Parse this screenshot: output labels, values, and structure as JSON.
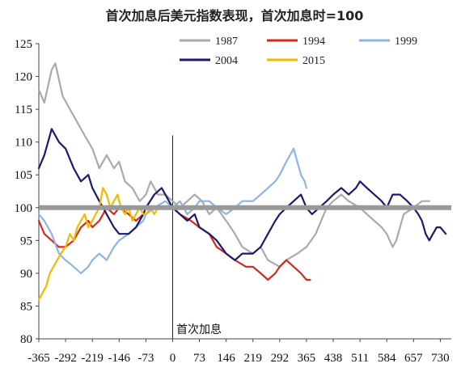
{
  "chart_data": {
    "type": "line",
    "title": "首次加息后美元指数表现，首次加息时=100",
    "xlabel": "",
    "ylabel": "",
    "xlim": [
      -365,
      760
    ],
    "ylim": [
      80,
      125
    ],
    "x_ticks": [
      -365,
      -292,
      -219,
      -146,
      -73,
      0,
      73,
      146,
      219,
      292,
      365,
      438,
      511,
      584,
      657,
      730
    ],
    "y_ticks": [
      80,
      85,
      90,
      95,
      100,
      105,
      110,
      115,
      120,
      125
    ],
    "grid": false,
    "legend_position": "top",
    "reference_line": {
      "y": 100,
      "color": "#999999"
    },
    "annotation": {
      "text": "首次加息",
      "x": 0
    },
    "series": [
      {
        "name": "1987",
        "color": "#aaaaaa",
        "points": [
          [
            -365,
            118
          ],
          [
            -350,
            116
          ],
          [
            -330,
            121
          ],
          [
            -320,
            122
          ],
          [
            -300,
            117
          ],
          [
            -280,
            115
          ],
          [
            -260,
            113
          ],
          [
            -240,
            111
          ],
          [
            -219,
            109
          ],
          [
            -200,
            106
          ],
          [
            -180,
            108
          ],
          [
            -160,
            106
          ],
          [
            -146,
            107
          ],
          [
            -130,
            104
          ],
          [
            -110,
            103
          ],
          [
            -90,
            101
          ],
          [
            -73,
            102
          ],
          [
            -60,
            104
          ],
          [
            -40,
            102
          ],
          [
            -20,
            102
          ],
          [
            0,
            101
          ],
          [
            20,
            100
          ],
          [
            40,
            101
          ],
          [
            60,
            102
          ],
          [
            80,
            101
          ],
          [
            100,
            99
          ],
          [
            120,
            100
          ],
          [
            146,
            98
          ],
          [
            170,
            96
          ],
          [
            190,
            94
          ],
          [
            219,
            93
          ],
          [
            240,
            94
          ],
          [
            260,
            92
          ],
          [
            292,
            91
          ],
          [
            310,
            92
          ],
          [
            340,
            93
          ],
          [
            365,
            94
          ],
          [
            390,
            96
          ],
          [
            420,
            100
          ],
          [
            438,
            101
          ],
          [
            460,
            102
          ],
          [
            480,
            101
          ],
          [
            511,
            100
          ],
          [
            530,
            99
          ],
          [
            550,
            98
          ],
          [
            570,
            97
          ],
          [
            584,
            96
          ],
          [
            600,
            94
          ],
          [
            610,
            95
          ],
          [
            630,
            99
          ],
          [
            657,
            100
          ],
          [
            680,
            101
          ],
          [
            700,
            101
          ]
        ]
      },
      {
        "name": "1994",
        "color": "#d42a1e",
        "points": [
          [
            -365,
            98
          ],
          [
            -350,
            96
          ],
          [
            -330,
            95
          ],
          [
            -310,
            94
          ],
          [
            -292,
            94
          ],
          [
            -270,
            95
          ],
          [
            -250,
            97
          ],
          [
            -230,
            98
          ],
          [
            -219,
            97
          ],
          [
            -200,
            98
          ],
          [
            -180,
            100
          ],
          [
            -160,
            99
          ],
          [
            -146,
            100
          ],
          [
            -120,
            99
          ],
          [
            -100,
            98
          ],
          [
            -80,
            99
          ],
          [
            -73,
            99
          ],
          [
            -50,
            100
          ],
          [
            -20,
            100
          ],
          [
            0,
            100
          ],
          [
            20,
            99
          ],
          [
            50,
            98
          ],
          [
            73,
            97
          ],
          [
            100,
            96
          ],
          [
            120,
            94
          ],
          [
            146,
            93
          ],
          [
            170,
            92
          ],
          [
            200,
            91
          ],
          [
            219,
            91
          ],
          [
            240,
            90
          ],
          [
            260,
            89
          ],
          [
            280,
            90
          ],
          [
            292,
            91
          ],
          [
            310,
            92
          ],
          [
            330,
            91
          ],
          [
            350,
            90
          ],
          [
            365,
            89
          ],
          [
            375,
            89
          ]
        ]
      },
      {
        "name": "1999",
        "color": "#8db4e2",
        "points": [
          [
            -365,
            99
          ],
          [
            -350,
            98
          ],
          [
            -330,
            96
          ],
          [
            -310,
            93
          ],
          [
            -292,
            92
          ],
          [
            -270,
            91
          ],
          [
            -250,
            90
          ],
          [
            -230,
            91
          ],
          [
            -219,
            92
          ],
          [
            -200,
            93
          ],
          [
            -180,
            92
          ],
          [
            -160,
            94
          ],
          [
            -146,
            95
          ],
          [
            -120,
            96
          ],
          [
            -100,
            97
          ],
          [
            -80,
            98
          ],
          [
            -73,
            99
          ],
          [
            -50,
            100
          ],
          [
            -20,
            101
          ],
          [
            0,
            100
          ],
          [
            20,
            101
          ],
          [
            40,
            99
          ],
          [
            60,
            100
          ],
          [
            73,
            101
          ],
          [
            100,
            101
          ],
          [
            120,
            100
          ],
          [
            146,
            99
          ],
          [
            170,
            100
          ],
          [
            190,
            101
          ],
          [
            219,
            101
          ],
          [
            240,
            102
          ],
          [
            260,
            103
          ],
          [
            280,
            104
          ],
          [
            292,
            105
          ],
          [
            310,
            107
          ],
          [
            320,
            108
          ],
          [
            330,
            109
          ],
          [
            340,
            107
          ],
          [
            350,
            105
          ],
          [
            360,
            104
          ],
          [
            365,
            103
          ]
        ]
      },
      {
        "name": "2004",
        "color": "#1c1a6f",
        "points": [
          [
            -365,
            106
          ],
          [
            -350,
            108
          ],
          [
            -330,
            112
          ],
          [
            -310,
            110
          ],
          [
            -292,
            109
          ],
          [
            -270,
            106
          ],
          [
            -250,
            104
          ],
          [
            -230,
            105
          ],
          [
            -219,
            103
          ],
          [
            -200,
            101
          ],
          [
            -180,
            99
          ],
          [
            -160,
            97
          ],
          [
            -146,
            96
          ],
          [
            -120,
            96
          ],
          [
            -100,
            97
          ],
          [
            -80,
            99
          ],
          [
            -73,
            100
          ],
          [
            -50,
            102
          ],
          [
            -30,
            103
          ],
          [
            -10,
            101
          ],
          [
            0,
            100
          ],
          [
            20,
            99
          ],
          [
            40,
            98
          ],
          [
            60,
            99
          ],
          [
            73,
            97
          ],
          [
            100,
            96
          ],
          [
            120,
            95
          ],
          [
            146,
            93
          ],
          [
            170,
            92
          ],
          [
            190,
            93
          ],
          [
            219,
            93
          ],
          [
            240,
            94
          ],
          [
            260,
            96
          ],
          [
            280,
            98
          ],
          [
            292,
            99
          ],
          [
            310,
            100
          ],
          [
            330,
            101
          ],
          [
            350,
            102
          ],
          [
            365,
            100
          ],
          [
            380,
            99
          ],
          [
            400,
            100
          ],
          [
            420,
            101
          ],
          [
            438,
            102
          ],
          [
            460,
            103
          ],
          [
            480,
            102
          ],
          [
            500,
            103
          ],
          [
            511,
            104
          ],
          [
            530,
            103
          ],
          [
            550,
            102
          ],
          [
            570,
            101
          ],
          [
            584,
            100
          ],
          [
            600,
            102
          ],
          [
            620,
            102
          ],
          [
            640,
            101
          ],
          [
            657,
            100
          ],
          [
            670,
            99
          ],
          [
            680,
            98
          ],
          [
            690,
            96
          ],
          [
            700,
            95
          ],
          [
            710,
            96
          ],
          [
            720,
            97
          ],
          [
            730,
            97
          ],
          [
            745,
            96
          ]
        ]
      },
      {
        "name": "2015",
        "color": "#f5b800",
        "points": [
          [
            -365,
            86
          ],
          [
            -355,
            87
          ],
          [
            -345,
            88
          ],
          [
            -335,
            90
          ],
          [
            -325,
            91
          ],
          [
            -315,
            92
          ],
          [
            -305,
            93
          ],
          [
            -292,
            94
          ],
          [
            -280,
            96
          ],
          [
            -270,
            95
          ],
          [
            -260,
            97
          ],
          [
            -250,
            98
          ],
          [
            -240,
            99
          ],
          [
            -230,
            97
          ],
          [
            -219,
            98
          ],
          [
            -210,
            99
          ],
          [
            -200,
            100
          ],
          [
            -190,
            103
          ],
          [
            -180,
            102
          ],
          [
            -170,
            100
          ],
          [
            -160,
            101
          ],
          [
            -150,
            102
          ],
          [
            -146,
            101
          ],
          [
            -140,
            100
          ],
          [
            -130,
            99
          ],
          [
            -120,
            100
          ],
          [
            -110,
            98
          ],
          [
            -100,
            99
          ],
          [
            -90,
            100
          ],
          [
            -80,
            99
          ],
          [
            -73,
            99
          ],
          [
            -60,
            100
          ],
          [
            -50,
            99
          ],
          [
            -40,
            100
          ]
        ]
      }
    ]
  }
}
